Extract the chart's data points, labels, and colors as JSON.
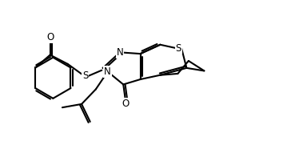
{
  "bg_color": "#ffffff",
  "line_color": "#000000",
  "line_width": 1.5,
  "font_size": 8.5,
  "fig_width": 3.74,
  "fig_height": 1.91,
  "dpi": 100,
  "xlim": [
    0.0,
    10.5
  ],
  "ylim": [
    0.3,
    5.5
  ]
}
